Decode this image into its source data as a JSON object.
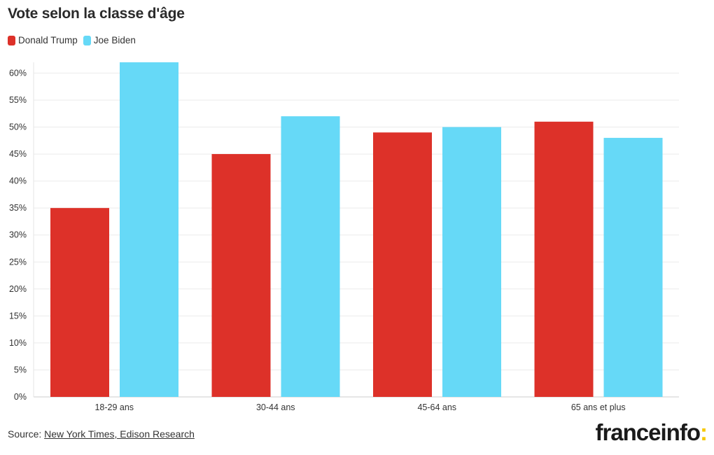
{
  "title": "Vote selon la classe d'âge",
  "legend": [
    {
      "label": "Donald Trump",
      "color": "#dd3129"
    },
    {
      "label": "Joe Biden",
      "color": "#66d9f7"
    }
  ],
  "chart_data": {
    "type": "bar",
    "title": "Vote selon la classe d'âge",
    "categories": [
      "18-29 ans",
      "30-44 ans",
      "45-64 ans",
      "65 ans et plus"
    ],
    "series": [
      {
        "name": "Donald Trump",
        "values": [
          35,
          45,
          49,
          51
        ],
        "color": "#dd3129"
      },
      {
        "name": "Joe Biden",
        "values": [
          62,
          52,
          50,
          48
        ],
        "color": "#66d9f7"
      }
    ],
    "y_ticks": [
      "0%",
      "5%",
      "10%",
      "15%",
      "20%",
      "25%",
      "30%",
      "35%",
      "40%",
      "45%",
      "50%",
      "55%",
      "60%"
    ],
    "ylim": [
      0,
      62
    ],
    "grid": true,
    "legend_position": "top-left"
  },
  "source": {
    "label": "Source:",
    "link_text": "New York Times, Edison Research"
  },
  "logo": {
    "text": "franceinfo",
    "dots": ":"
  }
}
